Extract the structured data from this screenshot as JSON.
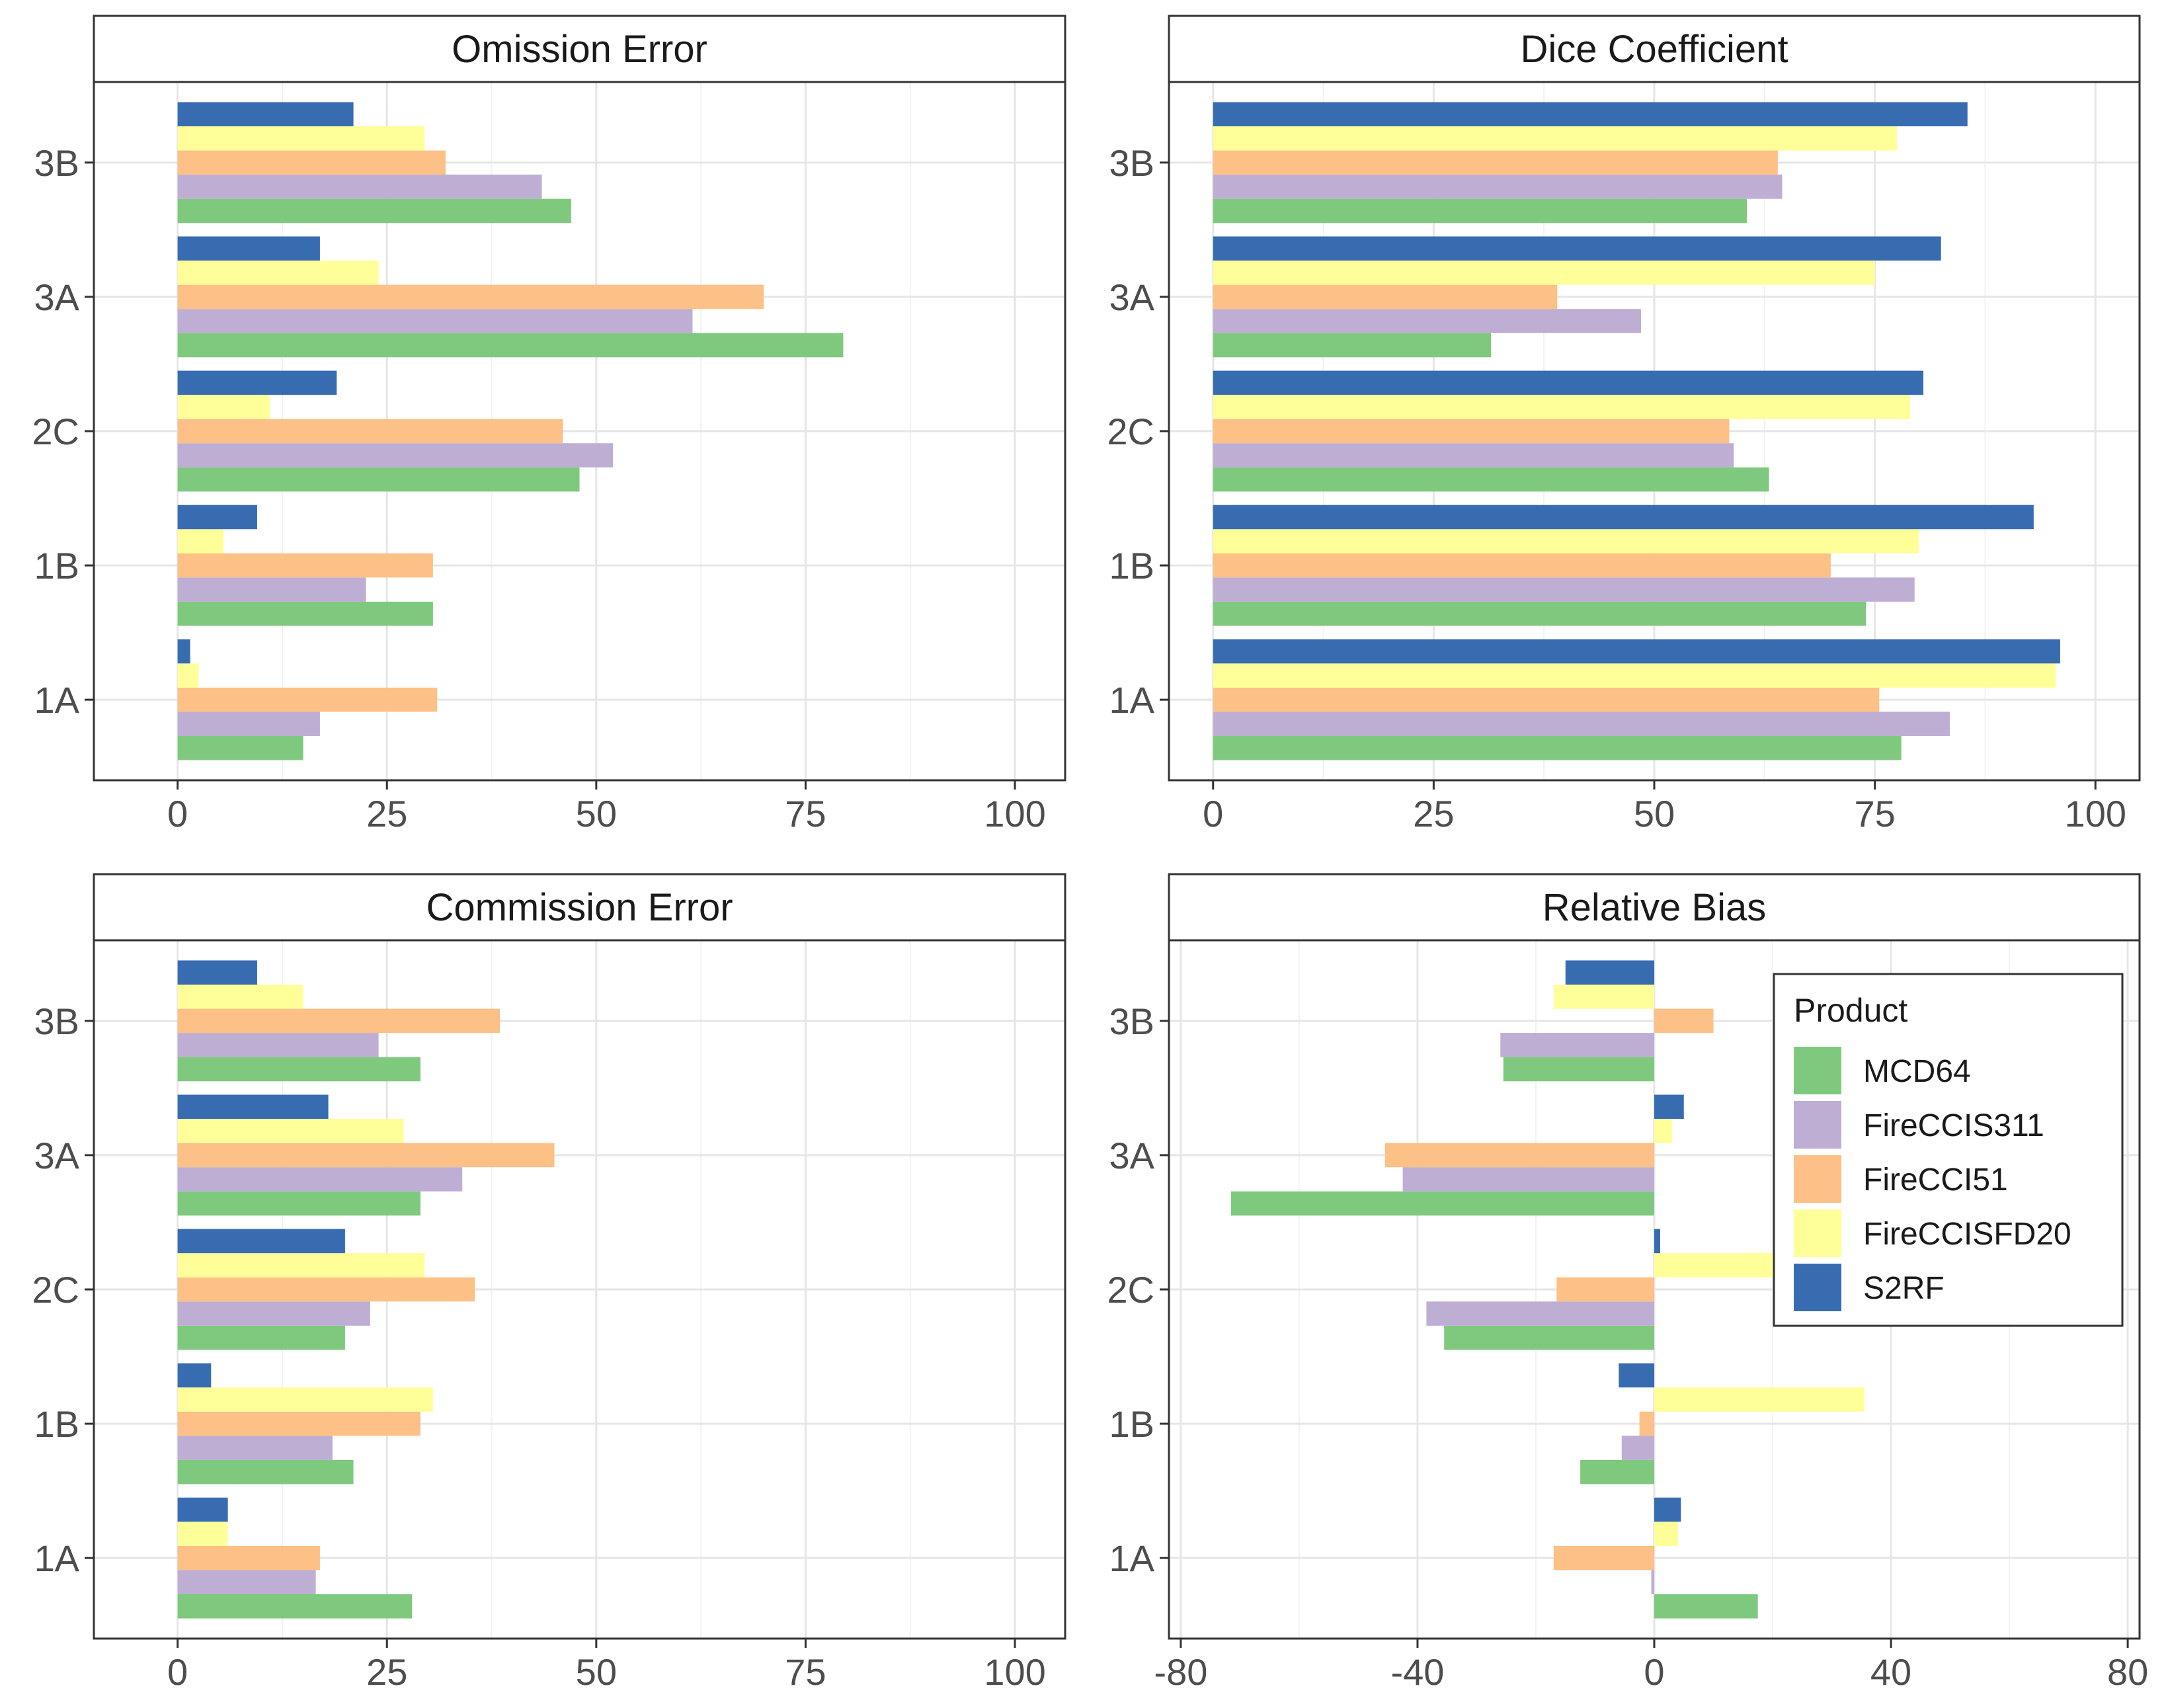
{
  "chart_data": {
    "type": "bar",
    "orientation": "horizontal",
    "facet_layout": "2x2",
    "categories": [
      "1A",
      "1B",
      "2C",
      "3A",
      "3B"
    ],
    "legend": {
      "title": "Product",
      "position": "right",
      "entries": [
        {
          "name": "MCD64",
          "color": "#7FC97F"
        },
        {
          "name": "FireCCIS311",
          "color": "#BEAED4"
        },
        {
          "name": "FireCCI51",
          "color": "#FDC086"
        },
        {
          "name": "FireCCISFD20",
          "color": "#FFFF99"
        },
        {
          "name": "S2RF",
          "color": "#386CB0"
        }
      ]
    },
    "panels": [
      {
        "title": "Omission Error",
        "xlim": [
          -10,
          106
        ],
        "xticks": [
          0,
          25,
          50,
          75,
          100
        ],
        "series": [
          {
            "name": "MCD64",
            "values": [
              15,
              30.5,
              48,
              79.5,
              47
            ]
          },
          {
            "name": "FireCCIS311",
            "values": [
              17,
              22.5,
              52,
              61.5,
              43.5
            ]
          },
          {
            "name": "FireCCI51",
            "values": [
              31,
              30.5,
              46,
              70,
              32
            ]
          },
          {
            "name": "FireCCISFD20",
            "values": [
              2.5,
              5.5,
              11,
              24,
              29.5
            ]
          },
          {
            "name": "S2RF",
            "values": [
              1.5,
              9.5,
              19,
              17,
              21
            ]
          }
        ]
      },
      {
        "title": "Dice Coefficient",
        "xlim": [
          -5,
          105
        ],
        "xticks": [
          0,
          25,
          50,
          75,
          100
        ],
        "series": [
          {
            "name": "MCD64",
            "values": [
              78,
              74,
              63,
              31.5,
              60.5
            ]
          },
          {
            "name": "FireCCIS311",
            "values": [
              83.5,
              79.5,
              59,
              48.5,
              64.5
            ]
          },
          {
            "name": "FireCCI51",
            "values": [
              75.5,
              70,
              58.5,
              39,
              64
            ]
          },
          {
            "name": "FireCCISFD20",
            "values": [
              95.5,
              80,
              79,
              75,
              77.5
            ]
          },
          {
            "name": "S2RF",
            "values": [
              96,
              93,
              80.5,
              82.5,
              85.5
            ]
          }
        ]
      },
      {
        "title": "Commission Error",
        "xlim": [
          -10,
          106
        ],
        "xticks": [
          0,
          25,
          50,
          75,
          100
        ],
        "series": [
          {
            "name": "MCD64",
            "values": [
              28,
              21,
              20,
              29,
              29
            ]
          },
          {
            "name": "FireCCIS311",
            "values": [
              16.5,
              18.5,
              23,
              34,
              24
            ]
          },
          {
            "name": "FireCCI51",
            "values": [
              17,
              29,
              35.5,
              45,
              38.5
            ]
          },
          {
            "name": "FireCCISFD20",
            "values": [
              6,
              30.5,
              29.5,
              27,
              15
            ]
          },
          {
            "name": "S2RF",
            "values": [
              6,
              4,
              20,
              18,
              9.5
            ]
          }
        ]
      },
      {
        "title": "Relative Bias",
        "xlim": [
          -82,
          82
        ],
        "xticks": [
          -80,
          -40,
          0,
          40,
          80
        ],
        "series": [
          {
            "name": "MCD64",
            "values": [
              17.5,
              -12.5,
              -35.5,
              -71.5,
              -25.5
            ]
          },
          {
            "name": "FireCCIS311",
            "values": [
              -0.5,
              -5.5,
              -38.5,
              -42.5,
              -26
            ]
          },
          {
            "name": "FireCCI51",
            "values": [
              -17,
              -2.5,
              -16.5,
              -45.5,
              10
            ]
          },
          {
            "name": "FireCCISFD20",
            "values": [
              4,
              35.5,
              23,
              3,
              -17
            ]
          },
          {
            "name": "S2RF",
            "values": [
              4.5,
              -6,
              1,
              5,
              -15
            ]
          }
        ]
      }
    ]
  }
}
